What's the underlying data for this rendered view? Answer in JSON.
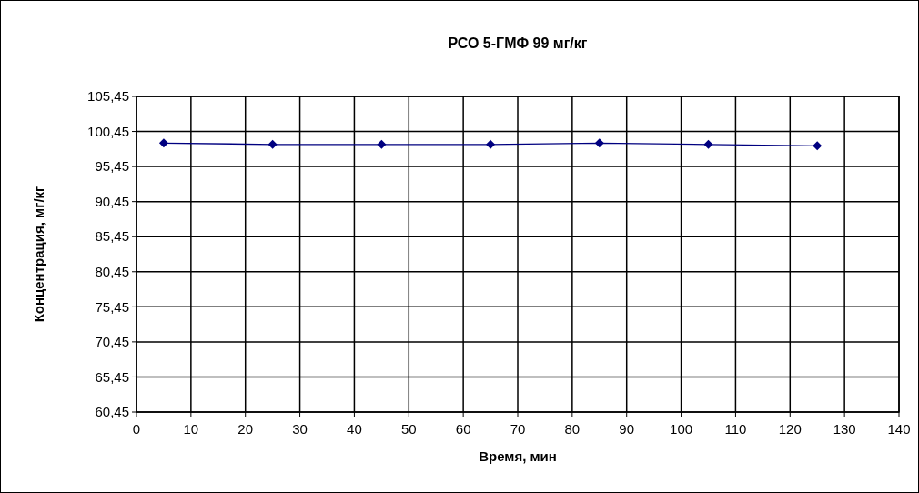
{
  "chart_data": {
    "type": "line",
    "title": "РСО 5-ГМФ 99 мг/кг",
    "xlabel": "Время, мин",
    "ylabel": "Концентрация, мг/кг",
    "x": [
      5,
      25,
      45,
      65,
      85,
      105,
      125
    ],
    "series": [
      {
        "color": "#000080",
        "values": [
          98.8,
          98.6,
          98.6,
          98.6,
          98.8,
          98.6,
          98.4
        ]
      }
    ],
    "xlim": [
      0,
      140
    ],
    "xticks": [
      0,
      10,
      20,
      30,
      40,
      50,
      60,
      70,
      80,
      90,
      100,
      110,
      120,
      130,
      140
    ],
    "ylim": [
      60.45,
      105.45
    ],
    "yticks": [
      {
        "value": 60.45,
        "label": "60,45"
      },
      {
        "value": 65.45,
        "label": "65,45"
      },
      {
        "value": 70.45,
        "label": "70,45"
      },
      {
        "value": 75.45,
        "label": "75,45"
      },
      {
        "value": 80.45,
        "label": "80,45"
      },
      {
        "value": 85.45,
        "label": "85,45"
      },
      {
        "value": 90.45,
        "label": "90,45"
      },
      {
        "value": 95.45,
        "label": "95,45"
      },
      {
        "value": 100.45,
        "label": "100,45"
      },
      {
        "value": 105.45,
        "label": "105,45"
      }
    ],
    "grid": true,
    "marker": "diamond",
    "line_style": "solid"
  }
}
